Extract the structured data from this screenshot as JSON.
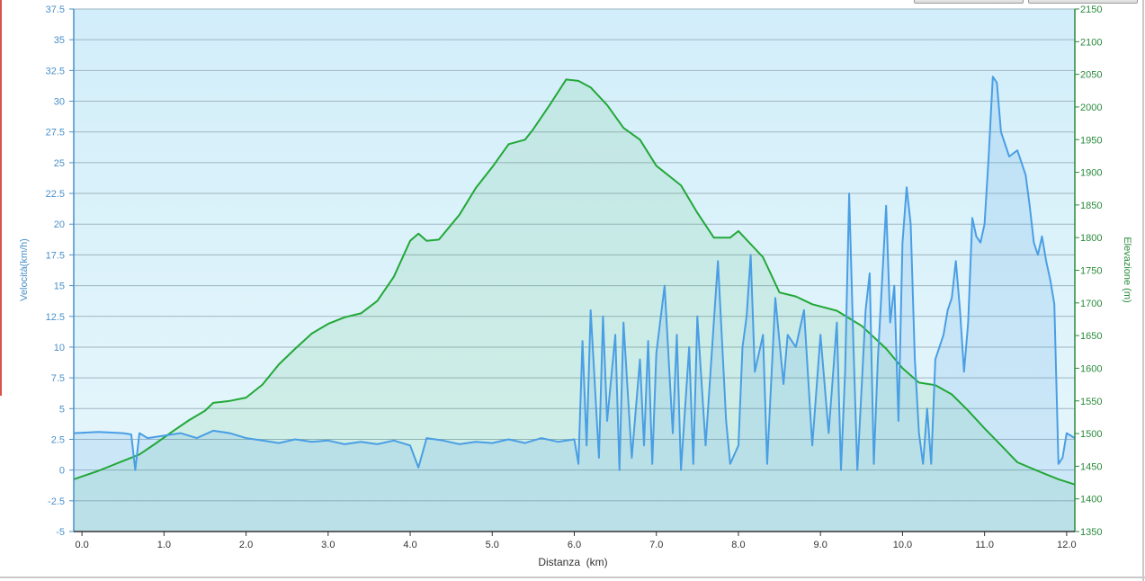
{
  "chart_data": {
    "type": "line",
    "title": "",
    "xlabel": "Distanza  (km)",
    "ylabel_left": "Velocità(km/h)",
    "ylabel_right": "Elevazione (m)",
    "x_ticks": [
      "0.0",
      "1.0",
      "2.0",
      "3.0",
      "4.0",
      "5.0",
      "6.0",
      "7.0",
      "8.0",
      "9.0",
      "10.0",
      "11.0",
      "12.0"
    ],
    "y_left_ticks": [
      "-5",
      "-2.5",
      "0",
      "2.5",
      "5",
      "7.5",
      "10",
      "12.5",
      "15",
      "17.5",
      "20",
      "22.5",
      "25",
      "27.5",
      "30",
      "32.5",
      "35",
      "37.5"
    ],
    "y_right_ticks": [
      "1350",
      "1400",
      "1450",
      "1500",
      "1550",
      "1600",
      "1650",
      "1700",
      "1750",
      "1800",
      "1850",
      "1900",
      "1950",
      "2000",
      "2050",
      "2100",
      "2150"
    ],
    "xlim": [
      -0.1,
      12.1
    ],
    "ylim_left": [
      -5,
      37.5
    ],
    "ylim_right": [
      1350,
      2150
    ],
    "grid": true,
    "colors": {
      "speed": "#4a9ee4",
      "elevation": "#22a838",
      "plot_bg_top": "#d2eefa",
      "plot_bg_bottom": "#e7f7fb",
      "grid": "#9fb5c0"
    },
    "series": [
      {
        "axis": "right",
        "color": "#22a838",
        "points": [
          [
            -0.1,
            1430
          ],
          [
            0.2,
            1443
          ],
          [
            0.5,
            1458
          ],
          [
            0.7,
            1468
          ],
          [
            0.9,
            1485
          ],
          [
            1.1,
            1503
          ],
          [
            1.3,
            1520
          ],
          [
            1.5,
            1535
          ],
          [
            1.6,
            1547
          ],
          [
            1.8,
            1550
          ],
          [
            2.0,
            1555
          ],
          [
            2.2,
            1575
          ],
          [
            2.4,
            1606
          ],
          [
            2.6,
            1630
          ],
          [
            2.8,
            1653
          ],
          [
            3.0,
            1668
          ],
          [
            3.2,
            1678
          ],
          [
            3.4,
            1684
          ],
          [
            3.6,
            1703
          ],
          [
            3.8,
            1740
          ],
          [
            4.0,
            1795
          ],
          [
            4.1,
            1806
          ],
          [
            4.2,
            1795
          ],
          [
            4.35,
            1797
          ],
          [
            4.6,
            1835
          ],
          [
            4.8,
            1876
          ],
          [
            5.0,
            1908
          ],
          [
            5.2,
            1943
          ],
          [
            5.4,
            1950
          ],
          [
            5.5,
            1966
          ],
          [
            5.7,
            2003
          ],
          [
            5.9,
            2042
          ],
          [
            6.05,
            2040
          ],
          [
            6.2,
            2030
          ],
          [
            6.4,
            2003
          ],
          [
            6.6,
            1968
          ],
          [
            6.8,
            1950
          ],
          [
            7.0,
            1910
          ],
          [
            7.3,
            1880
          ],
          [
            7.5,
            1838
          ],
          [
            7.7,
            1800
          ],
          [
            7.9,
            1800
          ],
          [
            8.0,
            1810
          ],
          [
            8.3,
            1770
          ],
          [
            8.5,
            1716
          ],
          [
            8.7,
            1710
          ],
          [
            8.9,
            1698
          ],
          [
            9.2,
            1688
          ],
          [
            9.5,
            1665
          ],
          [
            9.8,
            1630
          ],
          [
            10.0,
            1600
          ],
          [
            10.2,
            1578
          ],
          [
            10.4,
            1574
          ],
          [
            10.6,
            1560
          ],
          [
            10.8,
            1535
          ],
          [
            11.0,
            1508
          ],
          [
            11.2,
            1482
          ],
          [
            11.4,
            1456
          ],
          [
            11.7,
            1440
          ],
          [
            11.9,
            1430
          ],
          [
            12.0,
            1426
          ],
          [
            12.1,
            1422
          ]
        ]
      },
      {
        "axis": "left",
        "color": "#4a9ee4",
        "points": [
          [
            -0.1,
            3
          ],
          [
            0.2,
            3.1
          ],
          [
            0.5,
            3
          ],
          [
            0.6,
            2.9
          ],
          [
            0.65,
            0
          ],
          [
            0.7,
            3
          ],
          [
            0.8,
            2.6
          ],
          [
            1.0,
            2.8
          ],
          [
            1.2,
            3
          ],
          [
            1.4,
            2.6
          ],
          [
            1.6,
            3.2
          ],
          [
            1.8,
            3
          ],
          [
            2.0,
            2.6
          ],
          [
            2.2,
            2.4
          ],
          [
            2.4,
            2.2
          ],
          [
            2.6,
            2.5
          ],
          [
            2.8,
            2.3
          ],
          [
            3.0,
            2.4
          ],
          [
            3.2,
            2.1
          ],
          [
            3.4,
            2.3
          ],
          [
            3.6,
            2.1
          ],
          [
            3.8,
            2.4
          ],
          [
            4.0,
            2
          ],
          [
            4.1,
            0.2
          ],
          [
            4.2,
            2.6
          ],
          [
            4.4,
            2.4
          ],
          [
            4.6,
            2.1
          ],
          [
            4.8,
            2.3
          ],
          [
            5.0,
            2.2
          ],
          [
            5.2,
            2.5
          ],
          [
            5.4,
            2.2
          ],
          [
            5.6,
            2.6
          ],
          [
            5.8,
            2.3
          ],
          [
            6.0,
            2.5
          ],
          [
            6.05,
            0.5
          ],
          [
            6.1,
            10.5
          ],
          [
            6.15,
            2
          ],
          [
            6.2,
            13
          ],
          [
            6.3,
            1
          ],
          [
            6.35,
            12.5
          ],
          [
            6.4,
            4
          ],
          [
            6.5,
            11
          ],
          [
            6.55,
            0
          ],
          [
            6.6,
            12
          ],
          [
            6.7,
            1
          ],
          [
            6.8,
            9
          ],
          [
            6.85,
            2
          ],
          [
            6.9,
            10.5
          ],
          [
            6.95,
            0.5
          ],
          [
            7.0,
            9.5
          ],
          [
            7.1,
            15
          ],
          [
            7.2,
            3
          ],
          [
            7.25,
            11
          ],
          [
            7.3,
            0
          ],
          [
            7.4,
            10
          ],
          [
            7.45,
            0.5
          ],
          [
            7.5,
            12.5
          ],
          [
            7.6,
            2
          ],
          [
            7.7,
            12
          ],
          [
            7.75,
            17
          ],
          [
            7.85,
            4
          ],
          [
            7.9,
            0.5
          ],
          [
            8.0,
            2
          ],
          [
            8.05,
            10
          ],
          [
            8.1,
            12.5
          ],
          [
            8.15,
            17.5
          ],
          [
            8.2,
            8
          ],
          [
            8.3,
            11
          ],
          [
            8.35,
            0.5
          ],
          [
            8.45,
            14
          ],
          [
            8.55,
            7
          ],
          [
            8.6,
            11
          ],
          [
            8.7,
            10
          ],
          [
            8.8,
            13
          ],
          [
            8.9,
            2
          ],
          [
            9.0,
            11
          ],
          [
            9.1,
            3
          ],
          [
            9.2,
            12
          ],
          [
            9.25,
            0
          ],
          [
            9.3,
            8
          ],
          [
            9.35,
            22.5
          ],
          [
            9.4,
            10.5
          ],
          [
            9.45,
            0
          ],
          [
            9.55,
            13
          ],
          [
            9.6,
            16
          ],
          [
            9.65,
            0.5
          ],
          [
            9.7,
            9
          ],
          [
            9.8,
            21.5
          ],
          [
            9.85,
            12
          ],
          [
            9.9,
            15
          ],
          [
            9.95,
            4
          ],
          [
            10.0,
            18.5
          ],
          [
            10.05,
            23
          ],
          [
            10.1,
            20
          ],
          [
            10.15,
            9
          ],
          [
            10.2,
            3
          ],
          [
            10.25,
            0.5
          ],
          [
            10.3,
            5
          ],
          [
            10.35,
            0.5
          ],
          [
            10.4,
            9
          ],
          [
            10.5,
            11
          ],
          [
            10.55,
            13
          ],
          [
            10.6,
            14
          ],
          [
            10.65,
            17
          ],
          [
            10.7,
            13
          ],
          [
            10.75,
            8
          ],
          [
            10.8,
            12
          ],
          [
            10.85,
            20.5
          ],
          [
            10.9,
            19
          ],
          [
            10.95,
            18.5
          ],
          [
            11.0,
            20
          ],
          [
            11.05,
            25.5
          ],
          [
            11.1,
            32
          ],
          [
            11.15,
            31.5
          ],
          [
            11.2,
            27.5
          ],
          [
            11.3,
            25.5
          ],
          [
            11.4,
            26
          ],
          [
            11.5,
            24
          ],
          [
            11.55,
            21.5
          ],
          [
            11.6,
            18.5
          ],
          [
            11.65,
            17.5
          ],
          [
            11.7,
            19
          ],
          [
            11.75,
            17
          ],
          [
            11.8,
            15.5
          ],
          [
            11.85,
            13.5
          ],
          [
            11.9,
            0.5
          ],
          [
            11.95,
            1
          ],
          [
            12.0,
            3
          ],
          [
            12.1,
            2.6
          ]
        ]
      }
    ]
  }
}
